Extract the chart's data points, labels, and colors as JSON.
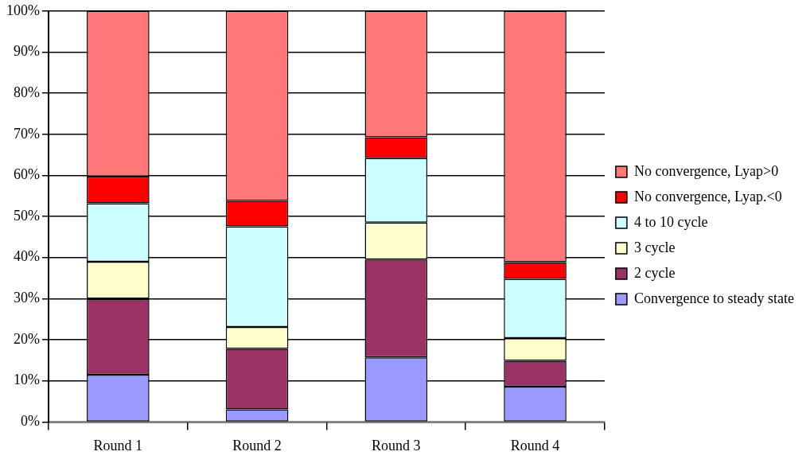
{
  "chart_data": {
    "type": "bar",
    "stacked": true,
    "categories": [
      "Round 1",
      "Round 2",
      "Round 3",
      "Round 4"
    ],
    "series": [
      {
        "name": "Convergence to steady state",
        "color": "#9999ff",
        "values": [
          11.5,
          3.1,
          15.7,
          8.6
        ]
      },
      {
        "name": "2 cycle",
        "color": "#993366",
        "values": [
          18.5,
          14.7,
          23.8,
          6.3
        ]
      },
      {
        "name": "3 cycle",
        "color": "#ffffcc",
        "values": [
          9,
          5.3,
          9,
          5.5
        ]
      },
      {
        "name": "4 to 10 cycle",
        "color": "#ccffff",
        "values": [
          14.2,
          24.5,
          15.7,
          14.4
        ]
      },
      {
        "name": "No convergence, Lyap.<0",
        "color": "#ff0000",
        "values": [
          6.5,
          6.2,
          5.1,
          4.1
        ]
      },
      {
        "name": "No convergence, Lyap>0",
        "color": "#ff7777",
        "values": [
          40.3,
          46.2,
          30.7,
          61.1
        ]
      }
    ],
    "ylim": [
      0,
      100
    ],
    "yticks": [
      {
        "value": 0,
        "label": "0%"
      },
      {
        "value": 10,
        "label": "10%"
      },
      {
        "value": 20,
        "label": "20%"
      },
      {
        "value": 30,
        "label": "30%"
      },
      {
        "value": 40,
        "label": "40%"
      },
      {
        "value": 50,
        "label": "50%"
      },
      {
        "value": 60,
        "label": "60%"
      },
      {
        "value": 70,
        "label": "70%"
      },
      {
        "value": 80,
        "label": "80%"
      },
      {
        "value": 90,
        "label": "90%"
      },
      {
        "value": 100,
        "label": "100%"
      }
    ],
    "grid": "y",
    "legend": "right"
  }
}
